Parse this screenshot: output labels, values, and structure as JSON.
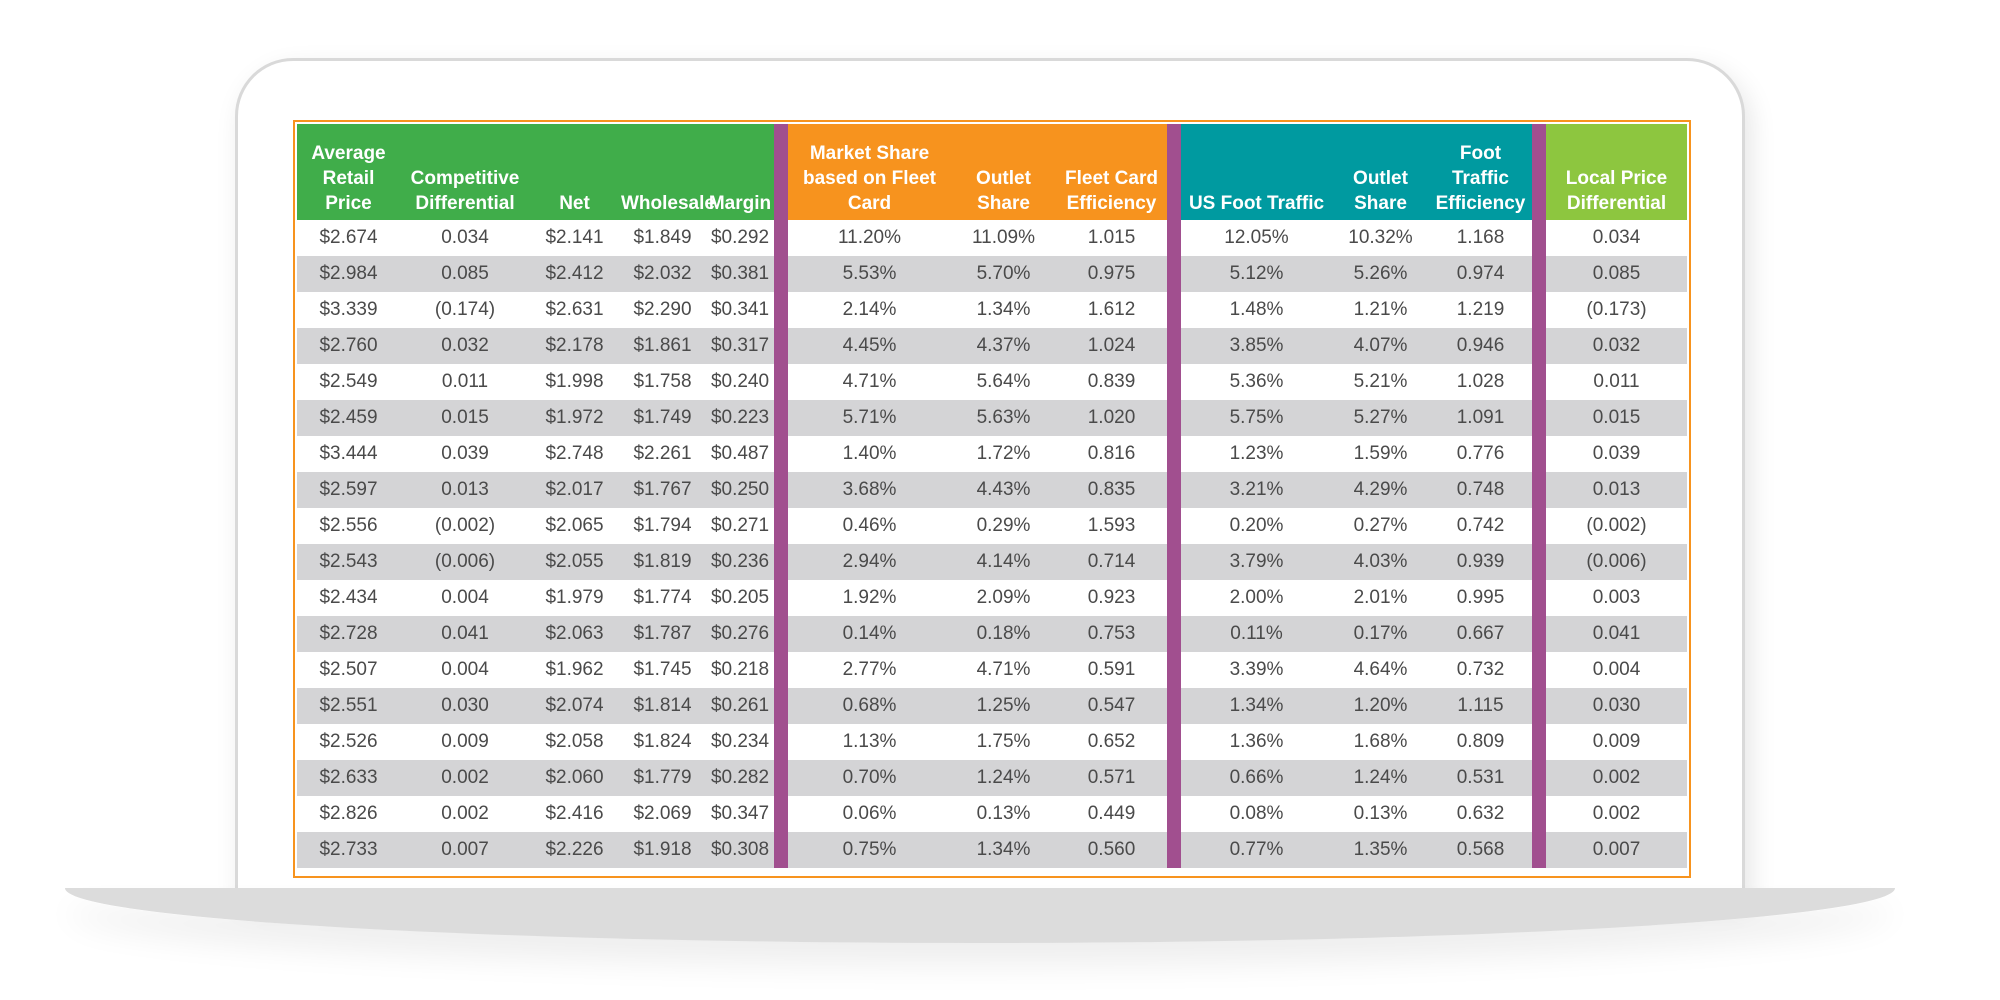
{
  "colors": {
    "group_1": "#40ad4a",
    "group_2": "#f7931e",
    "group_3": "#009aa0",
    "group_4": "#8dc63f",
    "separator": "#a14f8f",
    "row_alt": "#d4d4d6"
  },
  "table": {
    "headers": [
      "Average Retail Price",
      "Competitive Differential",
      "Net",
      "Wholesale",
      "Margin",
      "Market Share based on Fleet Card",
      "Outlet Share",
      "Fleet Card Efficiency",
      "US Foot Traffic",
      "Outlet Share",
      "Foot Traffic Efficiency",
      "Local Price Differential"
    ],
    "rows": [
      [
        "$2.674",
        "0.034",
        "$2.141",
        "$1.849",
        "$0.292",
        "11.20%",
        "11.09%",
        "1.015",
        "12.05%",
        "10.32%",
        "1.168",
        "0.034"
      ],
      [
        "$2.984",
        "0.085",
        "$2.412",
        "$2.032",
        "$0.381",
        "5.53%",
        "5.70%",
        "0.975",
        "5.12%",
        "5.26%",
        "0.974",
        "0.085"
      ],
      [
        "$3.339",
        "(0.174)",
        "$2.631",
        "$2.290",
        "$0.341",
        "2.14%",
        "1.34%",
        "1.612",
        "1.48%",
        "1.21%",
        "1.219",
        "(0.173)"
      ],
      [
        "$2.760",
        "0.032",
        "$2.178",
        "$1.861",
        "$0.317",
        "4.45%",
        "4.37%",
        "1.024",
        "3.85%",
        "4.07%",
        "0.946",
        "0.032"
      ],
      [
        "$2.549",
        "0.011",
        "$1.998",
        "$1.758",
        "$0.240",
        "4.71%",
        "5.64%",
        "0.839",
        "5.36%",
        "5.21%",
        "1.028",
        "0.011"
      ],
      [
        "$2.459",
        "0.015",
        "$1.972",
        "$1.749",
        "$0.223",
        "5.71%",
        "5.63%",
        "1.020",
        "5.75%",
        "5.27%",
        "1.091",
        "0.015"
      ],
      [
        "$3.444",
        "0.039",
        "$2.748",
        "$2.261",
        "$0.487",
        "1.40%",
        "1.72%",
        "0.816",
        "1.23%",
        "1.59%",
        "0.776",
        "0.039"
      ],
      [
        "$2.597",
        "0.013",
        "$2.017",
        "$1.767",
        "$0.250",
        "3.68%",
        "4.43%",
        "0.835",
        "3.21%",
        "4.29%",
        "0.748",
        "0.013"
      ],
      [
        "$2.556",
        "(0.002)",
        "$2.065",
        "$1.794",
        "$0.271",
        "0.46%",
        "0.29%",
        "1.593",
        "0.20%",
        "0.27%",
        "0.742",
        "(0.002)"
      ],
      [
        "$2.543",
        "(0.006)",
        "$2.055",
        "$1.819",
        "$0.236",
        "2.94%",
        "4.14%",
        "0.714",
        "3.79%",
        "4.03%",
        "0.939",
        "(0.006)"
      ],
      [
        "$2.434",
        "0.004",
        "$1.979",
        "$1.774",
        "$0.205",
        "1.92%",
        "2.09%",
        "0.923",
        "2.00%",
        "2.01%",
        "0.995",
        "0.003"
      ],
      [
        "$2.728",
        "0.041",
        "$2.063",
        "$1.787",
        "$0.276",
        "0.14%",
        "0.18%",
        "0.753",
        "0.11%",
        "0.17%",
        "0.667",
        "0.041"
      ],
      [
        "$2.507",
        "0.004",
        "$1.962",
        "$1.745",
        "$0.218",
        "2.77%",
        "4.71%",
        "0.591",
        "3.39%",
        "4.64%",
        "0.732",
        "0.004"
      ],
      [
        "$2.551",
        "0.030",
        "$2.074",
        "$1.814",
        "$0.261",
        "0.68%",
        "1.25%",
        "0.547",
        "1.34%",
        "1.20%",
        "1.115",
        "0.030"
      ],
      [
        "$2.526",
        "0.009",
        "$2.058",
        "$1.824",
        "$0.234",
        "1.13%",
        "1.75%",
        "0.652",
        "1.36%",
        "1.68%",
        "0.809",
        "0.009"
      ],
      [
        "$2.633",
        "0.002",
        "$2.060",
        "$1.779",
        "$0.282",
        "0.70%",
        "1.24%",
        "0.571",
        "0.66%",
        "1.24%",
        "0.531",
        "0.002"
      ],
      [
        "$2.826",
        "0.002",
        "$2.416",
        "$2.069",
        "$0.347",
        "0.06%",
        "0.13%",
        "0.449",
        "0.08%",
        "0.13%",
        "0.632",
        "0.002"
      ],
      [
        "$2.733",
        "0.007",
        "$2.226",
        "$1.918",
        "$0.308",
        "0.75%",
        "1.34%",
        "0.560",
        "0.77%",
        "1.35%",
        "0.568",
        "0.007"
      ]
    ]
  }
}
